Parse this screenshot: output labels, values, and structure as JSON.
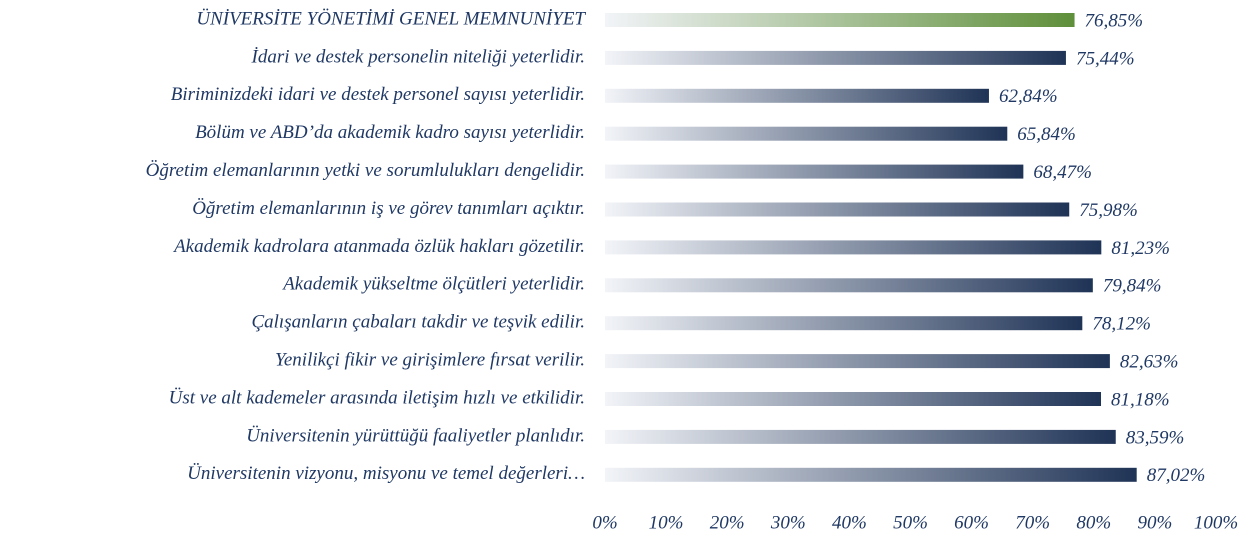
{
  "chart_data": {
    "type": "barh",
    "categories": [
      "ÜNİVERSİTE YÖNETİMİ GENEL MEMNUNİYET",
      "İdari ve destek personelin niteliği yeterlidir.",
      "Biriminizdeki idari ve destek personel sayısı yeterlidir.",
      "Bölüm ve ABD’da akademik kadro sayısı yeterlidir.",
      "Öğretim elemanlarının yetki ve sorumlulukları dengelidir.",
      "Öğretim elemanlarının iş ve görev tanımları açıktır.",
      "Akademik kadrolara atanmada özlük hakları gözetilir.",
      "Akademik yükseltme ölçütleri yeterlidir.",
      "Çalışanların çabaları takdir ve teşvik edilir.",
      "Yenilikçi fikir ve girişimlere fırsat verilir.",
      "Üst ve alt kademeler arasında iletişim hızlı ve etkilidir.",
      "Üniversitenin yürüttüğü faaliyetler planlıdır.",
      "Üniversitenin vizyonu, misyonu ve temel değerleri…"
    ],
    "values": [
      76.85,
      75.44,
      62.84,
      65.84,
      68.47,
      75.98,
      81.23,
      79.84,
      78.12,
      82.63,
      81.18,
      83.59,
      87.02
    ],
    "value_labels": [
      "76,85%",
      "75,44%",
      "62,84%",
      "65,84%",
      "68,47%",
      "75,98%",
      "81,23%",
      "79,84%",
      "78,12%",
      "82,63%",
      "81,18%",
      "83,59%",
      "87,02%"
    ],
    "colors": [
      "#5f8f3a",
      "#1f3356",
      "#1f3356",
      "#1f3356",
      "#1f3356",
      "#1f3356",
      "#1f3356",
      "#1f3356",
      "#1f3356",
      "#1f3356",
      "#1f3356",
      "#1f3356",
      "#1f3356"
    ],
    "xlim": [
      0,
      100
    ],
    "xticks": [
      {
        "value": 0,
        "label": "0%"
      },
      {
        "value": 10,
        "label": "10%"
      },
      {
        "value": 20,
        "label": "20%"
      },
      {
        "value": 30,
        "label": "30%"
      },
      {
        "value": 40,
        "label": "40%"
      },
      {
        "value": 50,
        "label": "50%"
      },
      {
        "value": 60,
        "label": "60%"
      },
      {
        "value": 70,
        "label": "70%"
      },
      {
        "value": 80,
        "label": "80%"
      },
      {
        "value": 90,
        "label": "90%"
      },
      {
        "value": 100,
        "label": "100%"
      }
    ],
    "grid": false
  }
}
